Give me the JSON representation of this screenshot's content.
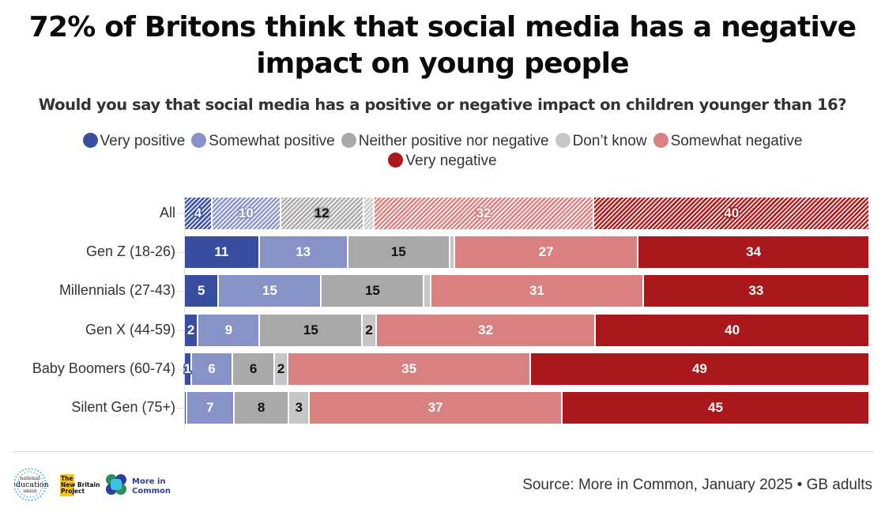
{
  "chart_data": {
    "type": "bar",
    "orientation": "horizontal",
    "stacked": true,
    "title": "72% of Britons think that social media has a negative impact on young people",
    "subtitle": "Would you say that social media has a positive or negative impact on children younger than 16?",
    "xlabel": "",
    "ylabel": "",
    "xlim": [
      0,
      100
    ],
    "grid": false,
    "legend_position": "top-center",
    "categories": [
      "All",
      "Gen Z (18-26)",
      "Millennials (27-43)",
      "Gen X (44-59)",
      "Baby Boomers (60-74)",
      "Silent Gen (75+)"
    ],
    "highlighted_category": "All",
    "series": [
      {
        "name": "Very positive",
        "color": "#3a4ea0",
        "label_color": "#ffffff",
        "values": [
          4,
          11,
          5,
          2,
          1,
          0.3
        ],
        "labels": [
          "4",
          "11",
          "5",
          "2",
          "1",
          ""
        ]
      },
      {
        "name": "Somewhat positive",
        "color": "#8793c6",
        "label_color": "#ffffff",
        "values": [
          10,
          13,
          15,
          9,
          6,
          7
        ],
        "labels": [
          "10",
          "13",
          "15",
          "9",
          "6",
          "7"
        ]
      },
      {
        "name": "Neither positive nor negative",
        "color": "#a9a9a9",
        "label_color": "#111111",
        "values": [
          12,
          15,
          15,
          15,
          6,
          8
        ],
        "labels": [
          "12",
          "15",
          "15",
          "15",
          "6",
          "8"
        ]
      },
      {
        "name": "Don’t know",
        "color": "#c6c6c6",
        "label_color": "#111111",
        "values": [
          1.5,
          0.7,
          1,
          2,
          2,
          3
        ],
        "labels": [
          "",
          "",
          "",
          "2",
          "2",
          "3"
        ]
      },
      {
        "name": "Somewhat negative",
        "color": "#d98080",
        "label_color": "#ffffff",
        "values": [
          32,
          27,
          31,
          32,
          35,
          37
        ],
        "labels": [
          "32",
          "27",
          "31",
          "32",
          "35",
          "37"
        ]
      },
      {
        "name": "Very negative",
        "color": "#aa181c",
        "label_color": "#ffffff",
        "values": [
          40,
          34,
          33,
          40,
          49,
          45
        ],
        "labels": [
          "40",
          "34",
          "33",
          "40",
          "49",
          "45"
        ]
      }
    ]
  },
  "footer": {
    "source": "Source: More in Common, January 2025 • GB adults",
    "logos": {
      "neu_line1": "national",
      "neu_line2": "education",
      "neu_line3": "union",
      "nbp_line1": "The",
      "nbp_line2": "New Britain",
      "nbp_line3": "Project",
      "mic_line1": "More in",
      "mic_line2": "Common"
    }
  }
}
